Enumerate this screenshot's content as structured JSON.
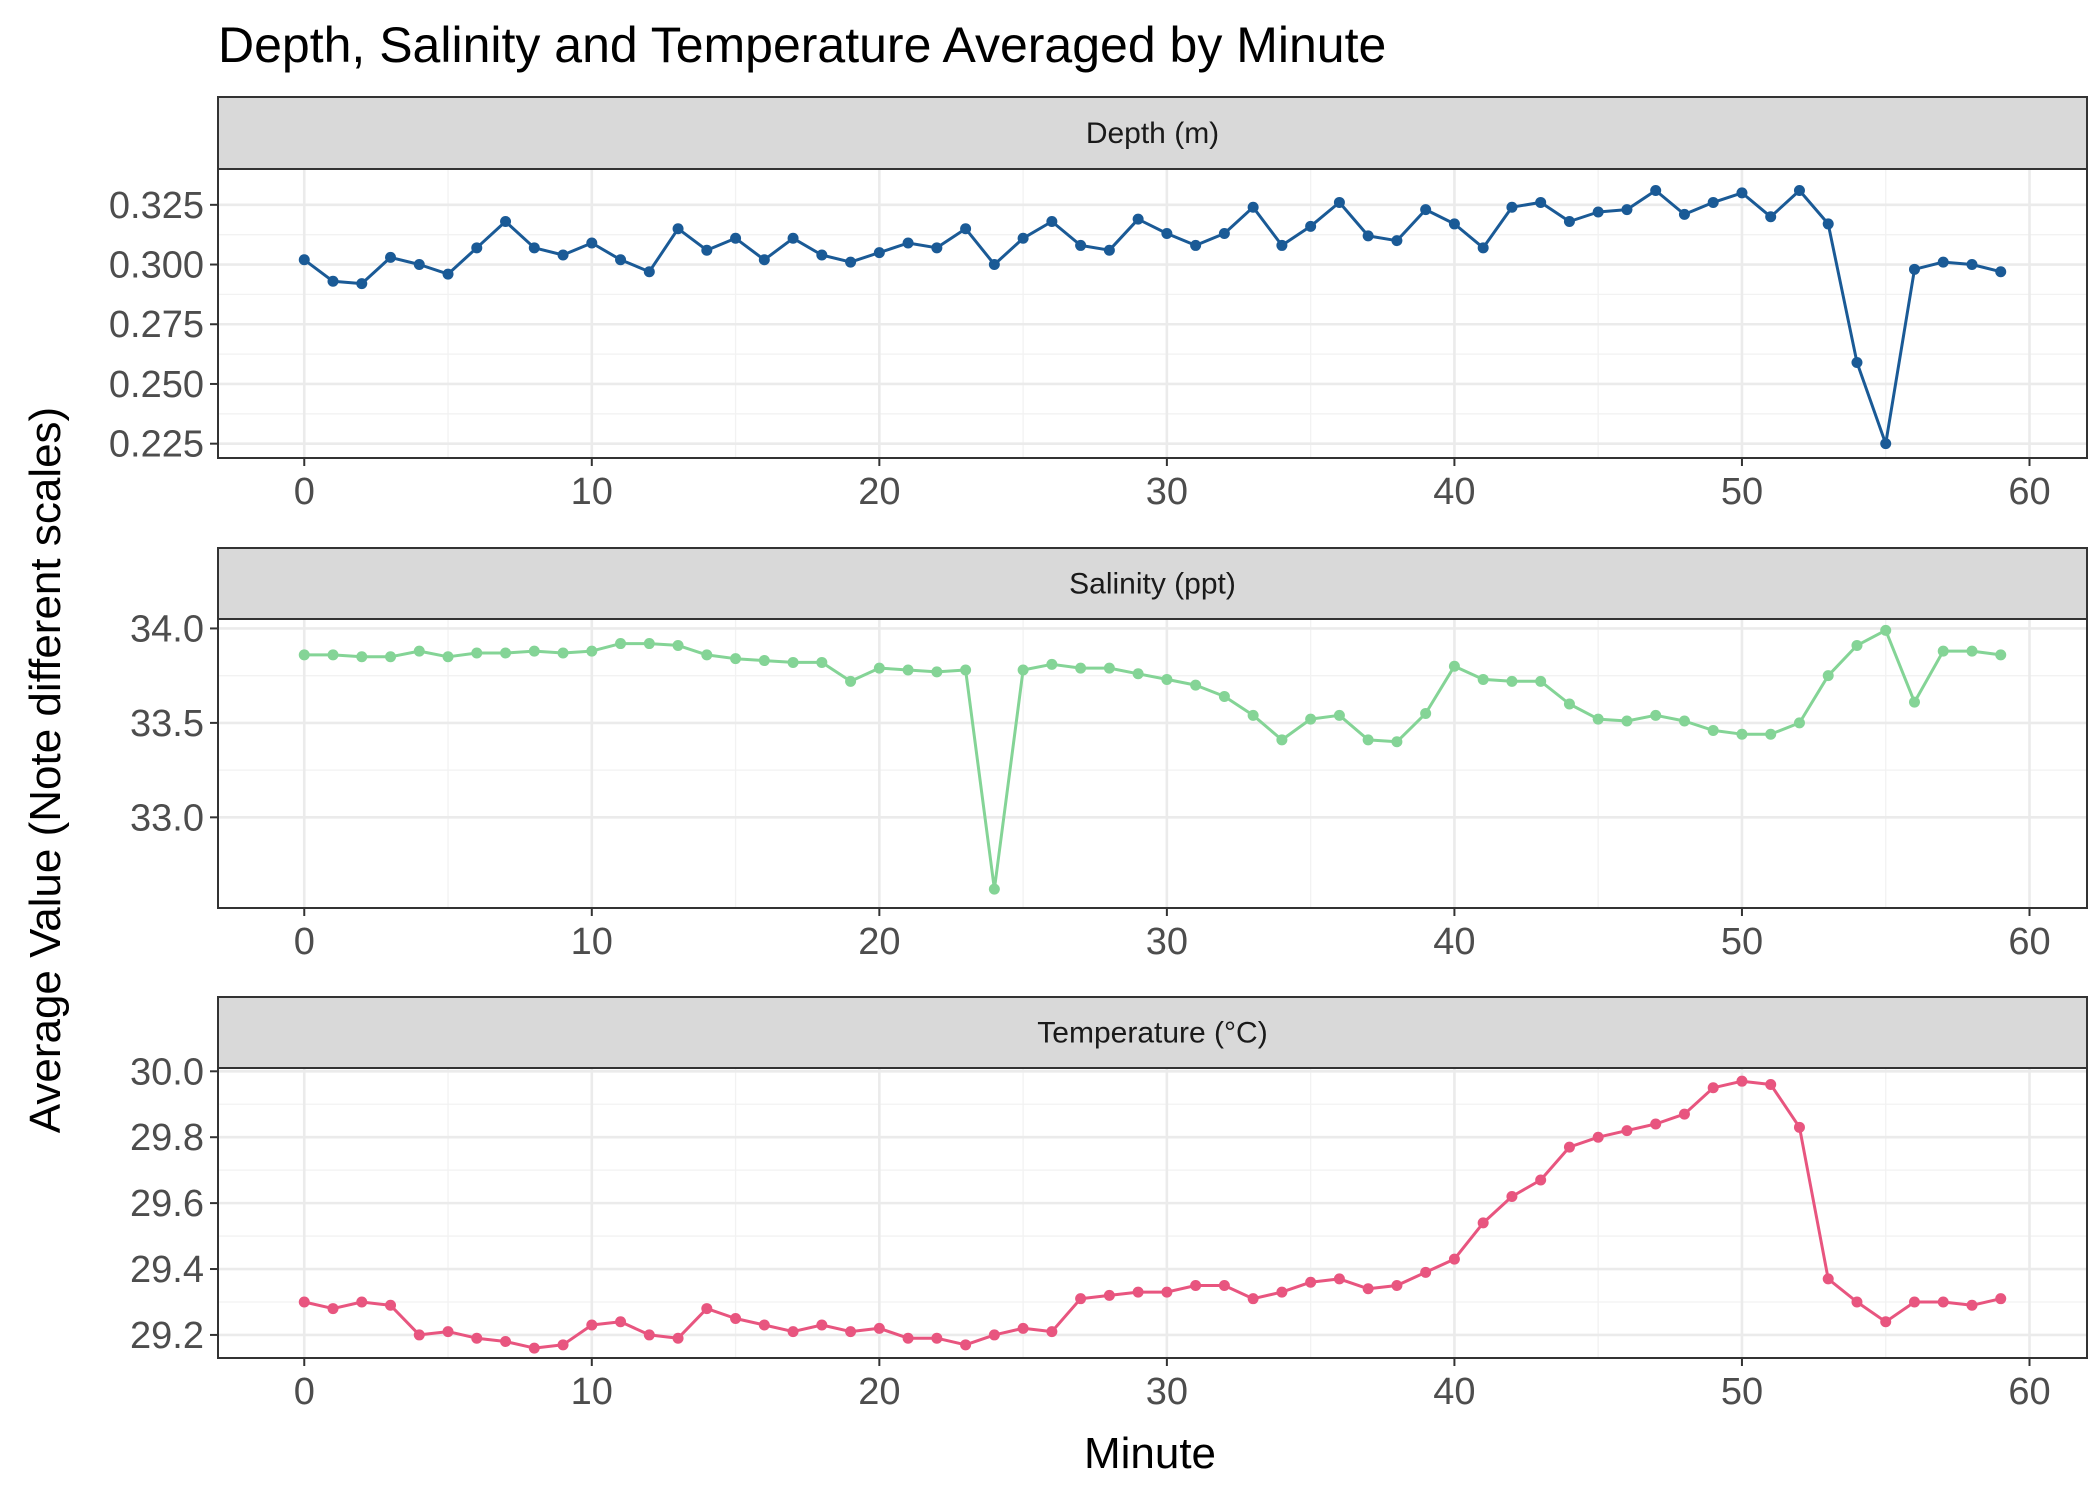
{
  "chart_data": {
    "type": "line",
    "title": "Depth, Salinity and Temperature Averaged by Minute",
    "xlabel": "Minute",
    "ylabel": "Average Value (Note different scales)",
    "facet_layout": "stacked-vertical",
    "grid": true,
    "theme": "bw",
    "x": [
      0,
      1,
      2,
      3,
      4,
      5,
      6,
      7,
      8,
      9,
      10,
      11,
      12,
      13,
      14,
      15,
      16,
      17,
      18,
      19,
      20,
      21,
      22,
      23,
      24,
      25,
      26,
      27,
      28,
      29,
      30,
      31,
      32,
      33,
      34,
      35,
      36,
      37,
      38,
      39,
      40,
      41,
      42,
      43,
      44,
      45,
      46,
      47,
      48,
      49,
      50,
      51,
      52,
      53,
      54,
      55,
      56,
      57,
      58,
      59
    ],
    "xlim": [
      -3,
      62
    ],
    "xticks": [
      0,
      10,
      20,
      30,
      40,
      50,
      60
    ],
    "xtick_labels": [
      "0",
      "10",
      "20",
      "30",
      "40",
      "50",
      "60"
    ],
    "panels": [
      {
        "label": "Depth (m)",
        "color": "#1a5a96",
        "ylim": [
          0.219,
          0.34
        ],
        "yticks": [
          0.225,
          0.25,
          0.275,
          0.3,
          0.325
        ],
        "ytick_labels": [
          "0.225",
          "0.250",
          "0.275",
          "0.300",
          "0.325"
        ],
        "values": [
          0.302,
          0.293,
          0.292,
          0.303,
          0.3,
          0.296,
          0.307,
          0.318,
          0.307,
          0.304,
          0.309,
          0.302,
          0.297,
          0.315,
          0.306,
          0.311,
          0.302,
          0.311,
          0.304,
          0.301,
          0.305,
          0.309,
          0.307,
          0.315,
          0.3,
          0.311,
          0.318,
          0.308,
          0.306,
          0.319,
          0.313,
          0.308,
          0.313,
          0.324,
          0.308,
          0.316,
          0.326,
          0.312,
          0.31,
          0.323,
          0.317,
          0.307,
          0.324,
          0.326,
          0.318,
          0.322,
          0.323,
          0.331,
          0.321,
          0.326,
          0.33,
          0.32,
          0.331,
          0.317,
          0.259,
          0.225,
          0.298,
          0.301,
          0.3,
          0.297
        ]
      },
      {
        "label": "Salinity (ppt)",
        "color": "#84d496",
        "ylim": [
          32.52,
          34.05
        ],
        "yticks": [
          33.0,
          33.5,
          34.0
        ],
        "ytick_labels": [
          "33.0",
          "33.5",
          "34.0"
        ],
        "values": [
          33.86,
          33.86,
          33.85,
          33.85,
          33.88,
          33.85,
          33.87,
          33.87,
          33.88,
          33.87,
          33.88,
          33.92,
          33.92,
          33.91,
          33.86,
          33.84,
          33.83,
          33.82,
          33.82,
          33.72,
          33.79,
          33.78,
          33.77,
          33.78,
          32.62,
          33.78,
          33.81,
          33.79,
          33.79,
          33.76,
          33.73,
          33.7,
          33.64,
          33.54,
          33.41,
          33.52,
          33.54,
          33.41,
          33.4,
          33.55,
          33.8,
          33.73,
          33.72,
          33.72,
          33.6,
          33.52,
          33.51,
          33.54,
          33.51,
          33.46,
          33.44,
          33.44,
          33.5,
          33.75,
          33.91,
          33.99,
          33.61,
          33.88,
          33.88,
          33.86
        ]
      },
      {
        "label": "Temperature (°C)",
        "color": "#e8557f",
        "ylim": [
          29.13,
          30.01
        ],
        "yticks": [
          29.2,
          29.4,
          29.6,
          29.8,
          30.0
        ],
        "ytick_labels": [
          "29.2",
          "29.4",
          "29.6",
          "29.8",
          "30.0"
        ],
        "values": [
          29.3,
          29.28,
          29.3,
          29.29,
          29.2,
          29.21,
          29.19,
          29.18,
          29.16,
          29.17,
          29.23,
          29.24,
          29.2,
          29.19,
          29.28,
          29.25,
          29.23,
          29.21,
          29.23,
          29.21,
          29.22,
          29.19,
          29.19,
          29.17,
          29.2,
          29.22,
          29.21,
          29.31,
          29.32,
          29.33,
          29.33,
          29.35,
          29.35,
          29.31,
          29.33,
          29.36,
          29.37,
          29.34,
          29.35,
          29.39,
          29.43,
          29.54,
          29.62,
          29.67,
          29.77,
          29.8,
          29.82,
          29.84,
          29.87,
          29.95,
          29.97,
          29.96,
          29.83,
          29.37,
          29.3,
          29.24,
          29.3,
          29.3,
          29.29,
          29.31
        ]
      }
    ]
  }
}
